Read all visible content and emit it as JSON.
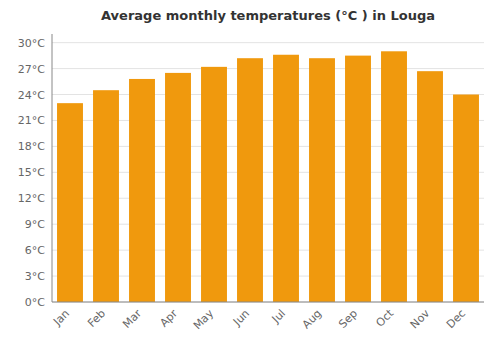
{
  "chart_data": {
    "type": "bar",
    "title": "Average monthly temperatures (°C ) in Louga",
    "categories": [
      "Jan",
      "Feb",
      "Mar",
      "Apr",
      "May",
      "Jun",
      "Jul",
      "Aug",
      "Sep",
      "Oct",
      "Nov",
      "Dec"
    ],
    "values": [
      23.0,
      24.5,
      25.8,
      26.5,
      27.2,
      28.2,
      28.6,
      28.2,
      28.5,
      29.0,
      26.7,
      24.0
    ],
    "color": "#F0990D",
    "ylim": [
      0,
      31
    ],
    "yticks": [
      {
        "value": 0,
        "label": "0°C"
      },
      {
        "value": 3,
        "label": "3°C"
      },
      {
        "value": 6,
        "label": "6°C"
      },
      {
        "value": 9,
        "label": "9°C"
      },
      {
        "value": 12,
        "label": "12°C"
      },
      {
        "value": 15,
        "label": "15°C"
      },
      {
        "value": 18,
        "label": "18°C"
      },
      {
        "value": 21,
        "label": "21°C"
      },
      {
        "value": 24,
        "label": "24°C"
      },
      {
        "value": 27,
        "label": "27°C"
      },
      {
        "value": 30,
        "label": "30°C"
      }
    ],
    "grid": true
  }
}
